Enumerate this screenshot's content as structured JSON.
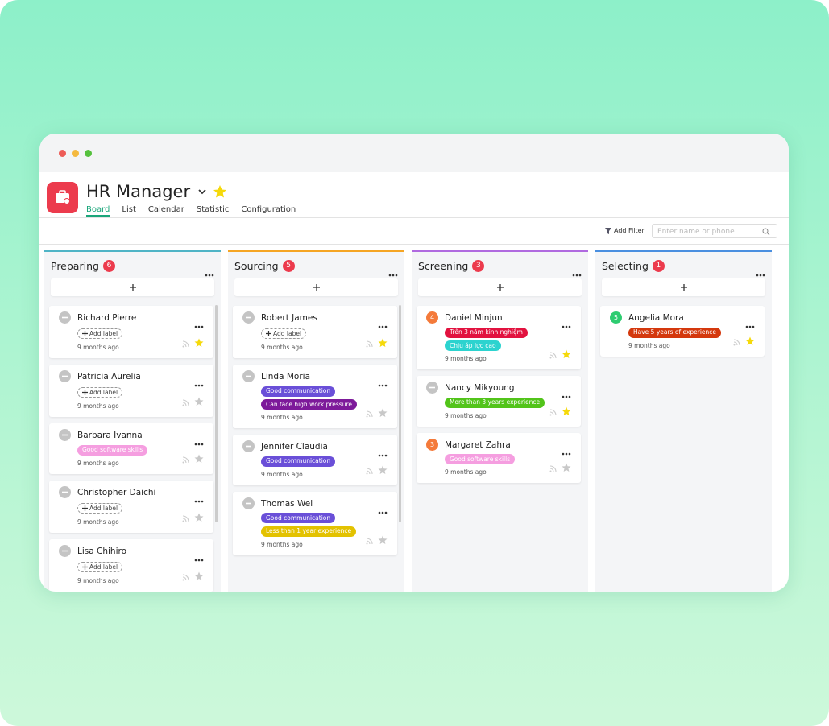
{
  "app": {
    "title": "HR Manager",
    "tabs": [
      "Board",
      "List",
      "Calendar",
      "Statistic",
      "Configuration"
    ]
  },
  "filter": {
    "button": "Add Filter",
    "placeholder": "Enter name or phone"
  },
  "add_label": "Add label",
  "columns": [
    {
      "title": "Preparing",
      "count": 6,
      "color": "#4fb4c6",
      "cards": [
        {
          "name": "Richard Pierre",
          "badge": null,
          "labels": [],
          "time": "9 months ago",
          "starred": true
        },
        {
          "name": "Patricia Aurelia",
          "badge": null,
          "labels": [],
          "time": "9 months ago",
          "starred": false
        },
        {
          "name": "Barbara Ivanna",
          "badge": null,
          "labels": [
            {
              "text": "Good software skills",
              "color": "#f59ee0"
            }
          ],
          "time": "9 months ago",
          "starred": false
        },
        {
          "name": "Christopher Daichi",
          "badge": null,
          "labels": [],
          "time": "9 months ago",
          "starred": false
        },
        {
          "name": "Lisa Chihiro",
          "badge": null,
          "labels": [],
          "time": "9 months ago",
          "starred": false
        }
      ]
    },
    {
      "title": "Sourcing",
      "count": 5,
      "color": "#f5a524",
      "cards": [
        {
          "name": "Robert James",
          "badge": null,
          "labels": [],
          "time": "9 months ago",
          "starred": true
        },
        {
          "name": "Linda Moria",
          "badge": null,
          "labels": [
            {
              "text": "Good communication",
              "color": "#6a4fd8"
            },
            {
              "text": "Can face high work pressure",
              "color": "#7d1a9a"
            }
          ],
          "time": "9 months ago",
          "starred": false
        },
        {
          "name": "Jennifer Claudia",
          "badge": null,
          "labels": [
            {
              "text": "Good communication",
              "color": "#6a4fd8"
            }
          ],
          "time": "9 months ago",
          "starred": false
        },
        {
          "name": "Thomas Wei",
          "badge": null,
          "labels": [
            {
              "text": "Good communication",
              "color": "#6a4fd8"
            },
            {
              "text": "Less than 1 year experience",
              "color": "#e3c200"
            }
          ],
          "time": "9 months ago",
          "starred": false
        }
      ]
    },
    {
      "title": "Screening",
      "count": 3,
      "color": "#b06ae0",
      "cards": [
        {
          "name": "Daniel Minjun",
          "badge": {
            "value": 4,
            "color": "#f47a3a"
          },
          "labels": [
            {
              "text": "Trên 3 năm kinh nghiệm",
              "color": "#e2123f"
            },
            {
              "text": "Chịu áp lực cao",
              "color": "#2cd3cf"
            }
          ],
          "time": "9 months ago",
          "starred": true
        },
        {
          "name": "Nancy Mikyoung",
          "badge": null,
          "labels": [
            {
              "text": "More than 3 years experience",
              "color": "#52c41a"
            }
          ],
          "time": "9 months ago",
          "starred": true
        },
        {
          "name": "Margaret Zahra",
          "badge": {
            "value": 3,
            "color": "#f47a3a"
          },
          "labels": [
            {
              "text": "Good software skills",
              "color": "#f59ee0"
            }
          ],
          "time": "9 months ago",
          "starred": false
        }
      ]
    },
    {
      "title": "Selecting",
      "count": 1,
      "color": "#4a8fe0",
      "cards": [
        {
          "name": "Angelia Mora",
          "badge": {
            "value": 5,
            "color": "#2ecc71"
          },
          "labels": [
            {
              "text": "Have 5 years of experience",
              "color": "#d4380d"
            }
          ],
          "time": "9 months ago",
          "starred": true
        }
      ]
    }
  ]
}
